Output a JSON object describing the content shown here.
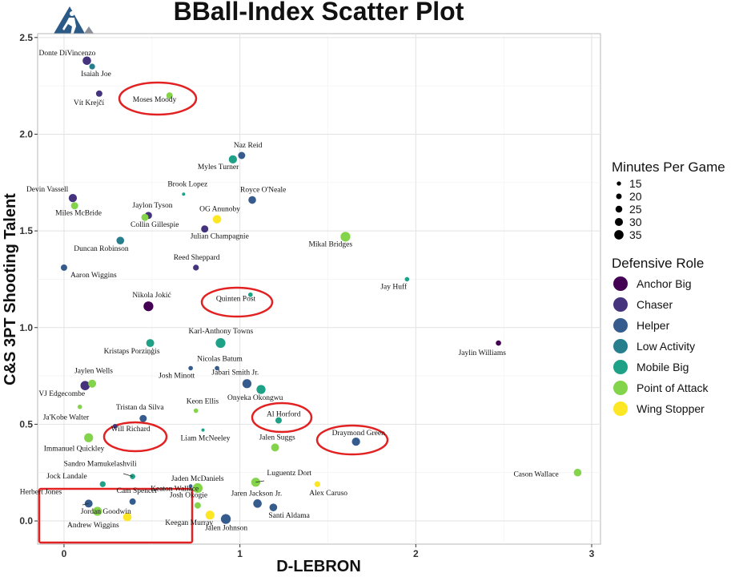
{
  "chart_data": {
    "type": "scatter",
    "title": "BBall-Index Scatter Plot",
    "xlabel": "D-LEBRON",
    "ylabel": "C&S 3PT Shooting Talent",
    "xlim": [
      -0.15,
      3.05
    ],
    "ylim": [
      -0.12,
      2.52
    ],
    "xticks": [
      "0",
      "1",
      "2",
      "3"
    ],
    "yticks": [
      "0.0",
      "0.5",
      "1.0",
      "1.5",
      "2.0",
      "2.5"
    ],
    "grid": true,
    "legend": {
      "placement": "right",
      "size_title": "Minutes Per Game",
      "size_entries": [
        "15",
        "20",
        "25",
        "30",
        "35"
      ],
      "color_title": "Defensive Role",
      "roles": [
        {
          "name": "Anchor Big",
          "color": "#440154"
        },
        {
          "name": "Chaser",
          "color": "#46337e"
        },
        {
          "name": "Helper",
          "color": "#365c8d"
        },
        {
          "name": "Low Activity",
          "color": "#277f8e"
        },
        {
          "name": "Mobile Big",
          "color": "#1fa187"
        },
        {
          "name": "Point of Attack",
          "color": "#84d44b"
        },
        {
          "name": "Wing Stopper",
          "color": "#fde725"
        }
      ]
    },
    "points": [
      {
        "name": "Donte DiVincenzo",
        "x": 0.13,
        "y": 2.38,
        "role": "Chaser",
        "mpg": 30
      },
      {
        "name": "Isaiah Joe",
        "x": 0.16,
        "y": 2.35,
        "role": "Low Activity",
        "mpg": 20
      },
      {
        "name": "Vít Krejčí",
        "x": 0.2,
        "y": 2.21,
        "role": "Chaser",
        "mpg": 22
      },
      {
        "name": "Moses Moody",
        "x": 0.6,
        "y": 2.2,
        "role": "Point of Attack",
        "mpg": 22
      },
      {
        "name": "Naz Reid",
        "x": 1.01,
        "y": 1.89,
        "role": "Helper",
        "mpg": 25
      },
      {
        "name": "Myles Turner",
        "x": 0.96,
        "y": 1.87,
        "role": "Mobile Big",
        "mpg": 29
      },
      {
        "name": "Devin Vassell",
        "x": 0.05,
        "y": 1.67,
        "role": "Chaser",
        "mpg": 29
      },
      {
        "name": "Miles McBride",
        "x": 0.06,
        "y": 1.63,
        "role": "Point of Attack",
        "mpg": 25
      },
      {
        "name": "Brook Lopez",
        "x": 0.68,
        "y": 1.69,
        "role": "Mobile Big",
        "mpg": 10
      },
      {
        "name": "Royce O'Neale",
        "x": 1.07,
        "y": 1.66,
        "role": "Helper",
        "mpg": 27
      },
      {
        "name": "Jaylon Tyson",
        "x": 0.48,
        "y": 1.58,
        "role": "Chaser",
        "mpg": 25
      },
      {
        "name": "Collin Gillespie",
        "x": 0.46,
        "y": 1.57,
        "role": "Point of Attack",
        "mpg": 25
      },
      {
        "name": "OG Anunoby",
        "x": 0.87,
        "y": 1.56,
        "role": "Wing Stopper",
        "mpg": 30
      },
      {
        "name": "Julian Champagnie",
        "x": 0.8,
        "y": 1.51,
        "role": "Chaser",
        "mpg": 25
      },
      {
        "name": "Mikal Bridges",
        "x": 1.6,
        "y": 1.47,
        "role": "Point of Attack",
        "mpg": 35
      },
      {
        "name": "Duncan Robinson",
        "x": 0.32,
        "y": 1.45,
        "role": "Low Activity",
        "mpg": 27
      },
      {
        "name": "Aaron Wiggins",
        "x": 0.0,
        "y": 1.31,
        "role": "Helper",
        "mpg": 22
      },
      {
        "name": "Reed Sheppard",
        "x": 0.75,
        "y": 1.31,
        "role": "Chaser",
        "mpg": 20
      },
      {
        "name": "Jay Huff",
        "x": 1.95,
        "y": 1.25,
        "role": "Mobile Big",
        "mpg": 15
      },
      {
        "name": "Quinten Post",
        "x": 1.06,
        "y": 1.17,
        "role": "Mobile Big",
        "mpg": 15
      },
      {
        "name": "Nikola Jokić",
        "x": 0.48,
        "y": 1.11,
        "role": "Anchor Big",
        "mpg": 35
      },
      {
        "name": "Karl-Anthony Towns",
        "x": 0.89,
        "y": 0.92,
        "role": "Mobile Big",
        "mpg": 35
      },
      {
        "name": "Kristaps Porziņģis",
        "x": 0.49,
        "y": 0.92,
        "role": "Mobile Big",
        "mpg": 28
      },
      {
        "name": "Jaylin Williams",
        "x": 2.47,
        "y": 0.92,
        "role": "Anchor Big",
        "mpg": 18
      },
      {
        "name": "Nicolas Batum",
        "x": 0.87,
        "y": 0.79,
        "role": "Helper",
        "mpg": 15
      },
      {
        "name": "Josh Minott",
        "x": 0.72,
        "y": 0.79,
        "role": "Helper",
        "mpg": 15
      },
      {
        "name": "Jaylen Wells",
        "x": 0.16,
        "y": 0.71,
        "role": "Point of Attack",
        "mpg": 28
      },
      {
        "name": "VJ Edgecombe",
        "x": 0.12,
        "y": 0.7,
        "role": "Chaser",
        "mpg": 33
      },
      {
        "name": "Jabari Smith Jr.",
        "x": 1.04,
        "y": 0.71,
        "role": "Helper",
        "mpg": 32
      },
      {
        "name": "Onyeka Okongwu",
        "x": 1.12,
        "y": 0.68,
        "role": "Mobile Big",
        "mpg": 32
      },
      {
        "name": "Ja'Kobe Walter",
        "x": 0.09,
        "y": 0.59,
        "role": "Point of Attack",
        "mpg": 15
      },
      {
        "name": "Keon Ellis",
        "x": 0.75,
        "y": 0.57,
        "role": "Point of Attack",
        "mpg": 15
      },
      {
        "name": "Tristan da Silva",
        "x": 0.45,
        "y": 0.53,
        "role": "Helper",
        "mpg": 25
      },
      {
        "name": "Al Horford",
        "x": 1.22,
        "y": 0.52,
        "role": "Mobile Big",
        "mpg": 22
      },
      {
        "name": "Will Richard",
        "x": 0.29,
        "y": 0.49,
        "role": "Chaser",
        "mpg": 15
      },
      {
        "name": "Liam McNeeley",
        "x": 0.79,
        "y": 0.47,
        "role": "Mobile Big",
        "mpg": 10
      },
      {
        "name": "Immanuel Quickley",
        "x": 0.14,
        "y": 0.43,
        "role": "Point of Attack",
        "mpg": 32
      },
      {
        "name": "Jalen Suggs",
        "x": 1.2,
        "y": 0.38,
        "role": "Point of Attack",
        "mpg": 28
      },
      {
        "name": "Draymond Green",
        "x": 1.66,
        "y": 0.41,
        "role": "Helper",
        "mpg": 29
      },
      {
        "name": "Sandro Mamukelashvili",
        "x": 0.39,
        "y": 0.23,
        "role": "Mobile Big",
        "mpg": 18
      },
      {
        "name": "Cason Wallace",
        "x": 2.92,
        "y": 0.25,
        "role": "Point of Attack",
        "mpg": 27
      },
      {
        "name": "Jock Landale",
        "x": 0.22,
        "y": 0.19,
        "role": "Mobile Big",
        "mpg": 20
      },
      {
        "name": "Keaton Wallace",
        "x": 0.72,
        "y": 0.18,
        "role": "Helper",
        "mpg": 12
      },
      {
        "name": "Jaden McDaniels",
        "x": 0.76,
        "y": 0.17,
        "role": "Point of Attack",
        "mpg": 35
      },
      {
        "name": "Luguentz Dort",
        "x": 1.09,
        "y": 0.2,
        "role": "Point of Attack",
        "mpg": 32
      },
      {
        "name": "Alex Caruso",
        "x": 1.44,
        "y": 0.19,
        "role": "Wing Stopper",
        "mpg": 20
      },
      {
        "name": "Herbert Jones",
        "x": 0.14,
        "y": 0.09,
        "role": "Helper",
        "mpg": 28
      },
      {
        "name": "Cam Spencer",
        "x": 0.39,
        "y": 0.1,
        "role": "Helper",
        "mpg": 22
      },
      {
        "name": "Josh Okogie",
        "x": 0.76,
        "y": 0.08,
        "role": "Point of Attack",
        "mpg": 22
      },
      {
        "name": "Jordan Goodwin",
        "x": 0.19,
        "y": 0.05,
        "role": "Point of Attack",
        "mpg": 32
      },
      {
        "name": "Jaren Jackson Jr.",
        "x": 1.1,
        "y": 0.09,
        "role": "Helper",
        "mpg": 30
      },
      {
        "name": "Andrew Wiggins",
        "x": 0.36,
        "y": 0.02,
        "role": "Wing Stopper",
        "mpg": 30
      },
      {
        "name": "Keegan Murray",
        "x": 0.83,
        "y": 0.03,
        "role": "Wing Stopper",
        "mpg": 32
      },
      {
        "name": "Jalen Johnson",
        "x": 0.92,
        "y": 0.01,
        "role": "Helper",
        "mpg": 35
      },
      {
        "name": "Santi Aldama",
        "x": 1.19,
        "y": 0.07,
        "role": "Helper",
        "mpg": 27
      }
    ]
  }
}
